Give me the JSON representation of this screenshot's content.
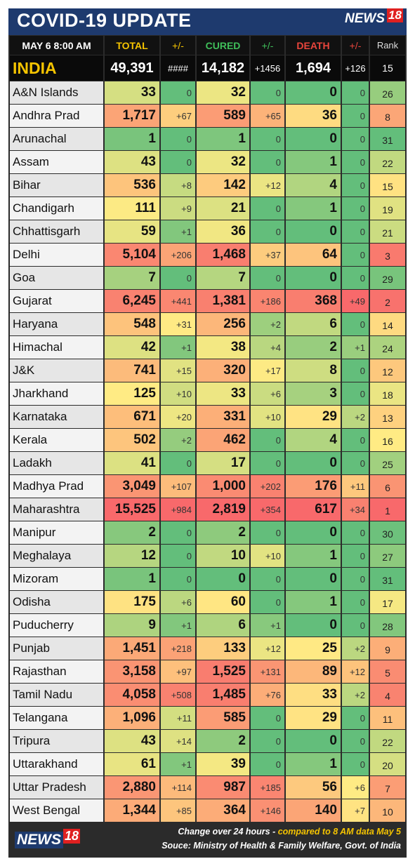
{
  "header": {
    "title": "COVID-19 UPDATE",
    "logo_news": "NEWS",
    "logo_num": "18",
    "date_time": "MAY 6  8:00 AM",
    "col_total": "TOTAL",
    "col_delta_total": "+/-",
    "col_cured": "CURED",
    "col_delta_cured": "+/-",
    "col_death": "DEATH",
    "col_delta_death": "+/-",
    "col_rank": "Rank"
  },
  "colors": {
    "title_bar": "#1e3a6e",
    "total_header": "#f5c400",
    "cured_header": "#3fbf5a",
    "death_header": "#e8453c",
    "highlight": "#f5c400"
  },
  "national": {
    "name": "INDIA",
    "total": "49,391",
    "total_delta": "####",
    "cured": "14,182",
    "cured_delta": "+1456",
    "death": "1,694",
    "death_delta": "+126",
    "rank": "15"
  },
  "rows": [
    {
      "state": "A&N Islands",
      "total": "33",
      "dt": "0",
      "cured": "32",
      "dc": "0",
      "death": "0",
      "dd": "0",
      "rank": "26"
    },
    {
      "state": "Andhra Prad",
      "total": "1,717",
      "dt": "+67",
      "cured": "589",
      "dc": "+65",
      "death": "36",
      "dd": "0",
      "rank": "8"
    },
    {
      "state": "Arunachal",
      "total": "1",
      "dt": "0",
      "cured": "1",
      "dc": "0",
      "death": "0",
      "dd": "0",
      "rank": "31"
    },
    {
      "state": "Assam",
      "total": "43",
      "dt": "0",
      "cured": "32",
      "dc": "0",
      "death": "1",
      "dd": "0",
      "rank": "22"
    },
    {
      "state": "Bihar",
      "total": "536",
      "dt": "+8",
      "cured": "142",
      "dc": "+12",
      "death": "4",
      "dd": "0",
      "rank": "15"
    },
    {
      "state": "Chandigarh",
      "total": "111",
      "dt": "+9",
      "cured": "21",
      "dc": "0",
      "death": "1",
      "dd": "0",
      "rank": "19"
    },
    {
      "state": "Chhattisgarh",
      "total": "59",
      "dt": "+1",
      "cured": "36",
      "dc": "0",
      "death": "0",
      "dd": "0",
      "rank": "21"
    },
    {
      "state": "Delhi",
      "total": "5,104",
      "dt": "+206",
      "cured": "1,468",
      "dc": "+37",
      "death": "64",
      "dd": "0",
      "rank": "3"
    },
    {
      "state": "Goa",
      "total": "7",
      "dt": "0",
      "cured": "7",
      "dc": "0",
      "death": "0",
      "dd": "0",
      "rank": "29"
    },
    {
      "state": "Gujarat",
      "total": "6,245",
      "dt": "+441",
      "cured": "1,381",
      "dc": "+186",
      "death": "368",
      "dd": "+49",
      "rank": "2"
    },
    {
      "state": "Haryana",
      "total": "548",
      "dt": "+31",
      "cured": "256",
      "dc": "+2",
      "death": "6",
      "dd": "0",
      "rank": "14"
    },
    {
      "state": "Himachal",
      "total": "42",
      "dt": "+1",
      "cured": "38",
      "dc": "+4",
      "death": "2",
      "dd": "+1",
      "rank": "24"
    },
    {
      "state": "J&K",
      "total": "741",
      "dt": "+15",
      "cured": "320",
      "dc": "+17",
      "death": "8",
      "dd": "0",
      "rank": "12"
    },
    {
      "state": "Jharkhand",
      "total": "125",
      "dt": "+10",
      "cured": "33",
      "dc": "+6",
      "death": "3",
      "dd": "0",
      "rank": "18"
    },
    {
      "state": "Karnataka",
      "total": "671",
      "dt": "+20",
      "cured": "331",
      "dc": "+10",
      "death": "29",
      "dd": "+2",
      "rank": "13"
    },
    {
      "state": "Kerala",
      "total": "502",
      "dt": "+2",
      "cured": "462",
      "dc": "0",
      "death": "4",
      "dd": "0",
      "rank": "16"
    },
    {
      "state": "Ladakh",
      "total": "41",
      "dt": "0",
      "cured": "17",
      "dc": "0",
      "death": "0",
      "dd": "0",
      "rank": "25"
    },
    {
      "state": "Madhya Prad",
      "total": "3,049",
      "dt": "+107",
      "cured": "1,000",
      "dc": "+202",
      "death": "176",
      "dd": "+11",
      "rank": "6"
    },
    {
      "state": "Maharashtra",
      "total": "15,525",
      "dt": "+984",
      "cured": "2,819",
      "dc": "+354",
      "death": "617",
      "dd": "+34",
      "rank": "1"
    },
    {
      "state": "Manipur",
      "total": "2",
      "dt": "0",
      "cured": "2",
      "dc": "0",
      "death": "0",
      "dd": "0",
      "rank": "30"
    },
    {
      "state": "Meghalaya",
      "total": "12",
      "dt": "0",
      "cured": "10",
      "dc": "+10",
      "death": "1",
      "dd": "0",
      "rank": "27"
    },
    {
      "state": "Mizoram",
      "total": "1",
      "dt": "0",
      "cured": "0",
      "dc": "0",
      "death": "0",
      "dd": "0",
      "rank": "31"
    },
    {
      "state": "Odisha",
      "total": "175",
      "dt": "+6",
      "cured": "60",
      "dc": "0",
      "death": "1",
      "dd": "0",
      "rank": "17"
    },
    {
      "state": "Puducherry",
      "total": "9",
      "dt": "+1",
      "cured": "6",
      "dc": "+1",
      "death": "0",
      "dd": "0",
      "rank": "28"
    },
    {
      "state": "Punjab",
      "total": "1,451",
      "dt": "+218",
      "cured": "133",
      "dc": "+12",
      "death": "25",
      "dd": "+2",
      "rank": "9"
    },
    {
      "state": "Rajasthan",
      "total": "3,158",
      "dt": "+97",
      "cured": "1,525",
      "dc": "+131",
      "death": "89",
      "dd": "+12",
      "rank": "5"
    },
    {
      "state": "Tamil Nadu",
      "total": "4,058",
      "dt": "+508",
      "cured": "1,485",
      "dc": "+76",
      "death": "33",
      "dd": "+2",
      "rank": "4"
    },
    {
      "state": "Telangana",
      "total": "1,096",
      "dt": "+11",
      "cured": "585",
      "dc": "0",
      "death": "29",
      "dd": "0",
      "rank": "11"
    },
    {
      "state": "Tripura",
      "total": "43",
      "dt": "+14",
      "cured": "2",
      "dc": "0",
      "death": "0",
      "dd": "0",
      "rank": "22"
    },
    {
      "state": "Uttarakhand",
      "total": "61",
      "dt": "+1",
      "cured": "39",
      "dc": "0",
      "death": "1",
      "dd": "0",
      "rank": "20"
    },
    {
      "state": "Uttar Pradesh",
      "total": "2,880",
      "dt": "+114",
      "cured": "987",
      "dc": "+185",
      "death": "56",
      "dd": "+6",
      "rank": "7"
    },
    {
      "state": "West Bengal",
      "total": "1,344",
      "dt": "+85",
      "cured": "364",
      "dc": "+146",
      "death": "140",
      "dd": "+7",
      "rank": "10"
    }
  ],
  "footer": {
    "line1_prefix": "Change over 24 hours - ",
    "line1_highlight": "compared to  8 AM data May 5",
    "line2": "Souce: Ministry of Health & Family Welfare, Govt. of India"
  }
}
